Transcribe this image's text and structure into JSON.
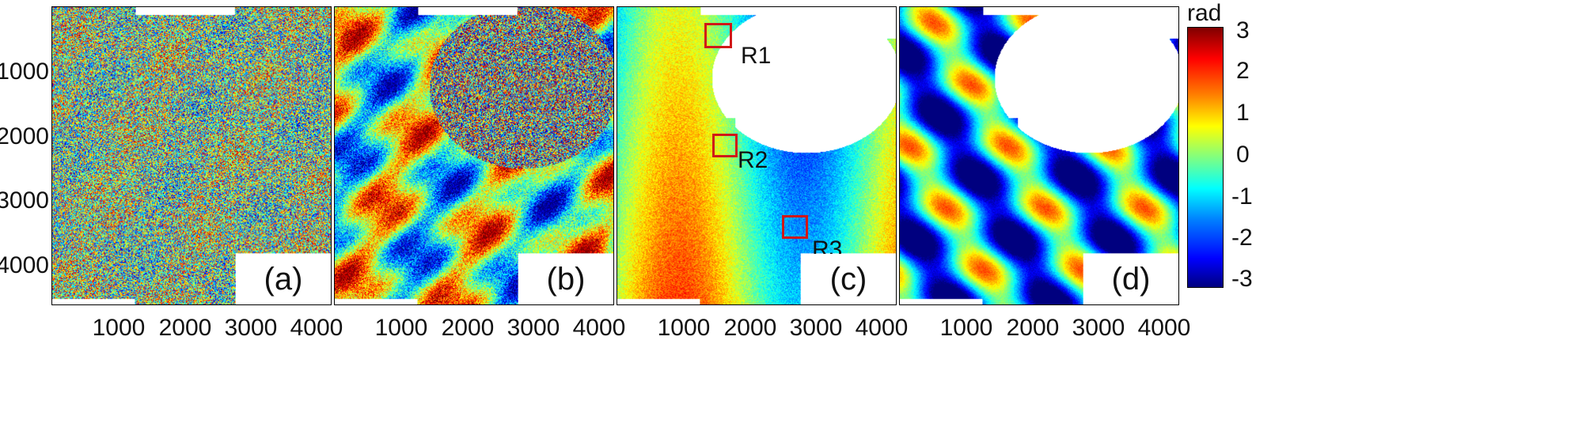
{
  "panels": [
    {
      "label": "(a)",
      "style": "noise"
    },
    {
      "label": "(b)",
      "style": "partial"
    },
    {
      "label": "(c)",
      "style": "filtered"
    },
    {
      "label": "(d)",
      "style": "smooth"
    }
  ],
  "y_ticks": [
    "1000",
    "2000",
    "3000",
    "4000"
  ],
  "x_ticks": [
    "1000",
    "2000",
    "3000",
    "4000"
  ],
  "regions": [
    {
      "label": "R1"
    },
    {
      "label": "R2"
    },
    {
      "label": "R3"
    }
  ],
  "colorbar": {
    "unit": "rad",
    "ticks": [
      "3",
      "2",
      "1",
      "0",
      "-1",
      "-2",
      "-3"
    ],
    "range": [
      -3,
      3
    ],
    "colormap": "jet"
  }
}
